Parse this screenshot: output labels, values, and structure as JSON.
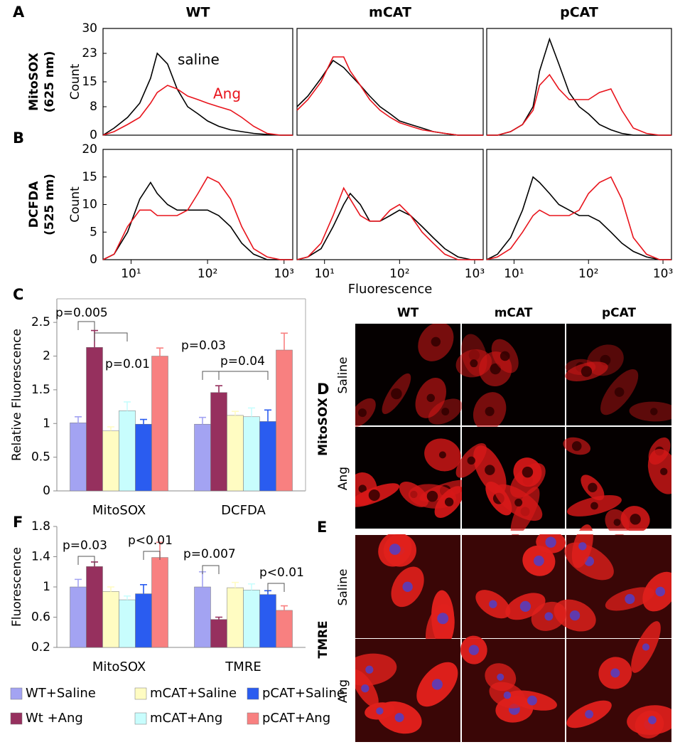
{
  "chart_data": [
    {
      "type": "line",
      "panel": "A",
      "title": "WT",
      "row_label": [
        "MitoSOX",
        "(625 nm)"
      ],
      "ylabel": "Count",
      "xlog": true,
      "x": [
        4.3,
        6,
        9,
        13,
        18,
        22,
        30,
        40,
        55,
        75,
        100,
        140,
        200,
        280,
        400,
        600,
        900,
        1300
      ],
      "xlim": [
        4.3,
        1300
      ],
      "ylim": [
        0,
        30
      ],
      "yticks": [
        0,
        8,
        15,
        23,
        30
      ],
      "series": [
        {
          "name": "saline",
          "color": "#000000",
          "values": [
            0,
            2,
            5,
            9,
            16,
            23,
            20,
            13,
            8,
            6,
            4,
            2.5,
            1.5,
            1,
            0.5,
            0.2,
            0,
            0
          ]
        },
        {
          "name": "Ang",
          "color": "#e8141c",
          "values": [
            0,
            1,
            3,
            5,
            9,
            12,
            14,
            13,
            11,
            10,
            9,
            8,
            7,
            5,
            2.5,
            0.5,
            0,
            0
          ]
        }
      ]
    },
    {
      "type": "line",
      "title": "mCAT",
      "xlog": true,
      "x": [
        4.3,
        6,
        9,
        13,
        18,
        22,
        30,
        40,
        55,
        75,
        100,
        140,
        200,
        280,
        400,
        600,
        900,
        1300
      ],
      "xlim": [
        4.3,
        1300
      ],
      "ylim": [
        0,
        30
      ],
      "series": [
        {
          "color": "#000000",
          "values": [
            8,
            11,
            16,
            21,
            19,
            17,
            14,
            11,
            8,
            6,
            4,
            3,
            2,
            1,
            0.5,
            0,
            0,
            0
          ]
        },
        {
          "color": "#e8141c",
          "values": [
            7,
            10,
            15,
            22,
            22,
            18,
            14,
            10,
            7,
            5,
            3.5,
            2.5,
            1.5,
            1,
            0.5,
            0,
            0,
            0
          ]
        }
      ]
    },
    {
      "type": "line",
      "title": "pCAT",
      "xlog": true,
      "x": [
        4.3,
        6,
        9,
        13,
        18,
        22,
        30,
        40,
        55,
        75,
        100,
        140,
        200,
        280,
        400,
        600,
        900,
        1300
      ],
      "xlim": [
        4.3,
        1300
      ],
      "ylim": [
        0,
        30
      ],
      "series": [
        {
          "color": "#000000",
          "values": [
            0,
            0,
            1,
            3,
            8,
            18,
            27,
            20,
            12,
            8,
            6,
            3,
            1.5,
            0.5,
            0,
            0,
            0,
            0
          ]
        },
        {
          "color": "#e8141c",
          "values": [
            0,
            0,
            1,
            3,
            7,
            14,
            17,
            13,
            10,
            10,
            10,
            12,
            13,
            7,
            2,
            0.5,
            0,
            0
          ]
        }
      ]
    },
    {
      "type": "line",
      "panel": "B",
      "row_label": [
        "DCFDA",
        "(525 nm)"
      ],
      "ylabel": "Count",
      "xlog": true,
      "x": [
        4.3,
        6,
        9,
        13,
        18,
        22,
        30,
        40,
        55,
        75,
        100,
        140,
        200,
        280,
        400,
        600,
        900,
        1300
      ],
      "xlim": [
        4.3,
        1300
      ],
      "ylim": [
        0,
        20
      ],
      "yticks": [
        0,
        5,
        10,
        15,
        20
      ],
      "xticks": [
        {
          "value": 10,
          "label": "10¹"
        },
        {
          "value": 100,
          "label": "10²"
        },
        {
          "value": 1000,
          "label": "10³"
        }
      ],
      "series": [
        {
          "color": "#000000",
          "values": [
            0,
            1,
            5,
            11,
            14,
            12,
            10,
            9,
            9,
            9,
            9,
            8,
            6,
            3,
            1,
            0,
            0,
            0
          ]
        },
        {
          "color": "#e8141c",
          "values": [
            0,
            1,
            6,
            9,
            9,
            8,
            8,
            8,
            9,
            12,
            15,
            14,
            11,
            6,
            2,
            0.5,
            0,
            0
          ]
        }
      ]
    },
    {
      "type": "line",
      "xlabel": "Fluorescence",
      "xlog": true,
      "x": [
        4.3,
        6,
        9,
        13,
        18,
        22,
        30,
        40,
        55,
        75,
        100,
        140,
        200,
        280,
        400,
        600,
        900,
        1300
      ],
      "xlim": [
        4.3,
        1300
      ],
      "ylim": [
        0,
        20
      ],
      "xticks": [
        {
          "value": 10,
          "label": "10¹"
        },
        {
          "value": 100,
          "label": "10²"
        },
        {
          "value": 1000,
          "label": "10³"
        }
      ],
      "series": [
        {
          "color": "#000000",
          "values": [
            0,
            0.5,
            2,
            6,
            10,
            12,
            10,
            7,
            7,
            8,
            9,
            8,
            6,
            4,
            2,
            0.5,
            0,
            0
          ]
        },
        {
          "color": "#e8141c",
          "values": [
            0,
            0.5,
            3,
            8,
            13,
            11,
            8,
            7,
            7,
            9,
            10,
            8,
            5,
            3,
            1,
            0,
            0,
            0
          ]
        }
      ]
    },
    {
      "type": "line",
      "xlog": true,
      "x": [
        4.3,
        6,
        9,
        13,
        18,
        22,
        30,
        40,
        55,
        75,
        100,
        140,
        200,
        280,
        400,
        600,
        900,
        1300
      ],
      "xlim": [
        4.3,
        1300
      ],
      "ylim": [
        0,
        20
      ],
      "xticks": [
        {
          "value": 10,
          "label": "10¹"
        },
        {
          "value": 100,
          "label": "10²"
        },
        {
          "value": 1000,
          "label": "10³"
        }
      ],
      "series": [
        {
          "color": "#000000",
          "values": [
            0,
            1,
            4,
            9,
            15,
            14,
            12,
            10,
            9,
            8,
            8,
            7,
            5,
            3,
            1.5,
            0.5,
            0,
            0
          ]
        },
        {
          "color": "#e8141c",
          "values": [
            0,
            0.5,
            2,
            5,
            8,
            9,
            8,
            8,
            8,
            9,
            12,
            14,
            15,
            11,
            4,
            1,
            0,
            0
          ]
        }
      ]
    },
    {
      "type": "bar",
      "panel": "C",
      "ylabel": "Relative Fluorescence",
      "categories": [
        "MitoSOX",
        "DCFDA"
      ],
      "ylim": [
        0,
        2.85
      ],
      "yticks": [
        0,
        0.5,
        1,
        1.5,
        2,
        2.5
      ],
      "annotations": [
        "p=0.005",
        "p=0.01",
        "p=0.03",
        "p=0.04"
      ],
      "series": [
        {
          "color": "#a3a3f2",
          "values": [
            1.01,
            0.99
          ],
          "errors": [
            0.09,
            0.1
          ]
        },
        {
          "color": "#96305e",
          "values": [
            2.13,
            1.46
          ],
          "errors": [
            0.25,
            0.1
          ]
        },
        {
          "color": "#fffcc2",
          "values": [
            0.89,
            1.12
          ],
          "errors": [
            0.06,
            0.06
          ]
        },
        {
          "color": "#c8fdfd",
          "values": [
            1.19,
            1.1
          ],
          "errors": [
            0.13,
            0.13
          ]
        },
        {
          "color": "#2a5cf0",
          "values": [
            0.99,
            1.03
          ],
          "errors": [
            0.07,
            0.17
          ]
        },
        {
          "color": "#f88080",
          "values": [
            2.0,
            2.09
          ],
          "errors": [
            0.12,
            0.25
          ]
        }
      ]
    },
    {
      "type": "bar",
      "panel": "F",
      "ylabel": "Fluorescence",
      "categories": [
        "MitoSOX",
        "TMRE"
      ],
      "ylim": [
        0.2,
        1.8
      ],
      "yticks": [
        0.2,
        0.6,
        1,
        1.4,
        1.8
      ],
      "annotations": [
        "p=0.03",
        "p<0.01",
        "p=0.007",
        "p<0.01"
      ],
      "series": [
        {
          "name": "WT+Saline",
          "color": "#a3a3f2",
          "values": [
            1.0,
            1.0
          ],
          "errors": [
            0.1,
            0.2
          ]
        },
        {
          "name": "Wt +Ang",
          "color": "#96305e",
          "values": [
            1.27,
            0.57
          ],
          "errors": [
            0.06,
            0.03
          ]
        },
        {
          "name": "mCAT+Saline",
          "color": "#fffcc2",
          "values": [
            0.94,
            0.99
          ],
          "errors": [
            0.06,
            0.07
          ]
        },
        {
          "name": "mCAT+Ang",
          "color": "#c8fdfd",
          "values": [
            0.83,
            0.96
          ],
          "errors": [
            0.05,
            0.08
          ]
        },
        {
          "name": "pCAT+Saline",
          "color": "#2a5cf0",
          "values": [
            0.91,
            0.9
          ],
          "errors": [
            0.12,
            0.05
          ]
        },
        {
          "name": "pCAT+Ang",
          "color": "#f88080",
          "values": [
            1.39,
            0.69
          ],
          "errors": [
            0.2,
            0.06
          ]
        }
      ]
    }
  ],
  "images": {
    "columns": [
      "WT",
      "mCAT",
      "pCAT"
    ],
    "panels": [
      {
        "label": "D",
        "stain": "MitoSOX",
        "rows": [
          "Saline",
          "Ang"
        ]
      },
      {
        "label": "E",
        "stain": "TMRE",
        "rows": [
          "Saline",
          "Ang"
        ]
      }
    ]
  }
}
